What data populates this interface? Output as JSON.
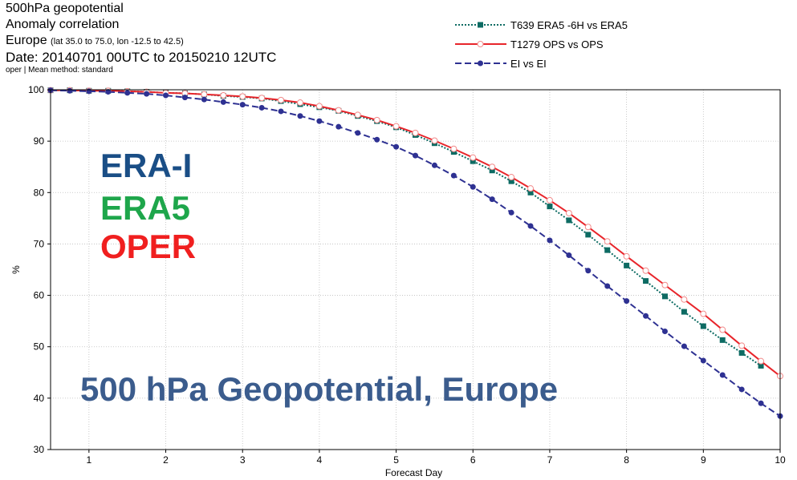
{
  "header": {
    "line1": "500hPa geopotential",
    "line2": "Anomaly correlation",
    "line3_main": "Europe",
    "line3_detail": "(lat  35.0 to 75.0, lon  -12.5 to  42.5)",
    "line4": "Date: 20140701 00UTC to 20150210 12UTC",
    "line5": "oper | Mean method: standard"
  },
  "overlay": {
    "erai": "ERA-I",
    "era5": "ERA5",
    "oper": "OPER",
    "title": "500 hPa Geopotential, Europe"
  },
  "chart_data": {
    "type": "line",
    "xlabel": "Forecast Day",
    "ylabel": "%",
    "xlim": [
      0.5,
      10
    ],
    "ylim": [
      30,
      100
    ],
    "x_ticks": [
      1,
      2,
      3,
      4,
      5,
      6,
      7,
      8,
      9,
      10
    ],
    "y_ticks": [
      30,
      40,
      50,
      60,
      70,
      80,
      90,
      100
    ],
    "grid": true,
    "legend_position": "top-right",
    "x": [
      0.5,
      0.75,
      1.0,
      1.25,
      1.5,
      1.75,
      2.0,
      2.25,
      2.5,
      2.75,
      3.0,
      3.25,
      3.5,
      3.75,
      4.0,
      4.25,
      4.5,
      4.75,
      5.0,
      5.25,
      5.5,
      5.75,
      6.0,
      6.25,
      6.5,
      6.75,
      7.0,
      7.25,
      7.5,
      7.75,
      8.0,
      8.25,
      8.5,
      8.75,
      9.0,
      9.25,
      9.5,
      9.75,
      10.0
    ],
    "series": [
      {
        "name": "T639 ERA5 -6H vs ERA5",
        "color": "#0d6b63",
        "dash": "dotted",
        "marker": "square",
        "x": [
          0.5,
          0.75,
          1.0,
          1.25,
          1.5,
          1.75,
          2.0,
          2.25,
          2.5,
          2.75,
          3.0,
          3.25,
          3.5,
          3.75,
          4.0,
          4.25,
          4.5,
          4.75,
          5.0,
          5.25,
          5.5,
          5.75,
          6.0,
          6.25,
          6.5,
          6.75,
          7.0,
          7.25,
          7.5,
          7.75,
          8.0,
          8.25,
          8.5,
          8.75,
          9.0,
          9.25,
          9.5,
          9.75
        ],
        "values": [
          99.9,
          99.9,
          99.8,
          99.8,
          99.7,
          99.6,
          99.4,
          99.3,
          99.1,
          98.8,
          98.6,
          98.3,
          97.8,
          97.2,
          96.6,
          95.9,
          94.9,
          93.9,
          92.7,
          91.2,
          89.6,
          87.9,
          86.1,
          84.3,
          82.2,
          80.0,
          77.3,
          74.6,
          71.8,
          68.8,
          65.8,
          62.8,
          59.8,
          56.8,
          54.0,
          51.3,
          48.8,
          46.3
        ]
      },
      {
        "name": "T1279 OPS vs OPS",
        "color": "#e8252b",
        "dash": "solid",
        "marker": "open-circle",
        "x": [
          0.5,
          0.75,
          1.0,
          1.25,
          1.5,
          1.75,
          2.0,
          2.25,
          2.5,
          2.75,
          3.0,
          3.25,
          3.5,
          3.75,
          4.0,
          4.25,
          4.5,
          4.75,
          5.0,
          5.25,
          5.5,
          5.75,
          6.0,
          6.25,
          6.5,
          6.75,
          7.0,
          7.25,
          7.5,
          7.75,
          8.0,
          8.25,
          8.5,
          8.75,
          9.0,
          9.25,
          9.5,
          9.75,
          10.0
        ],
        "values": [
          99.9,
          99.9,
          99.8,
          99.8,
          99.7,
          99.6,
          99.4,
          99.3,
          99.1,
          98.9,
          98.7,
          98.4,
          98.0,
          97.5,
          96.8,
          96.0,
          95.1,
          94.1,
          92.9,
          91.6,
          90.1,
          88.5,
          86.8,
          85.0,
          83.0,
          80.8,
          78.5,
          76.0,
          73.3,
          70.5,
          67.6,
          64.8,
          62.0,
          59.2,
          56.4,
          53.3,
          50.2,
          47.2,
          44.3
        ]
      },
      {
        "name": "EI vs EI",
        "color": "#2e3192",
        "dash": "dashed",
        "marker": "filled-circle",
        "x": [
          0.5,
          0.75,
          1.0,
          1.25,
          1.5,
          1.75,
          2.0,
          2.25,
          2.5,
          2.75,
          3.0,
          3.25,
          3.5,
          3.75,
          4.0,
          4.25,
          4.5,
          4.75,
          5.0,
          5.25,
          5.5,
          5.75,
          6.0,
          6.25,
          6.5,
          6.75,
          7.0,
          7.25,
          7.5,
          7.75,
          8.0,
          8.25,
          8.5,
          8.75,
          9.0,
          9.25,
          9.5,
          9.75,
          10.0
        ],
        "values": [
          99.9,
          99.8,
          99.7,
          99.6,
          99.4,
          99.2,
          98.9,
          98.5,
          98.1,
          97.6,
          97.1,
          96.5,
          95.8,
          94.9,
          93.9,
          92.8,
          91.6,
          90.3,
          88.9,
          87.2,
          85.3,
          83.3,
          81.1,
          78.7,
          76.1,
          73.5,
          70.7,
          67.8,
          64.8,
          61.8,
          58.9,
          56.0,
          53.0,
          50.1,
          47.3,
          44.5,
          41.7,
          39.0,
          36.5
        ]
      }
    ]
  }
}
